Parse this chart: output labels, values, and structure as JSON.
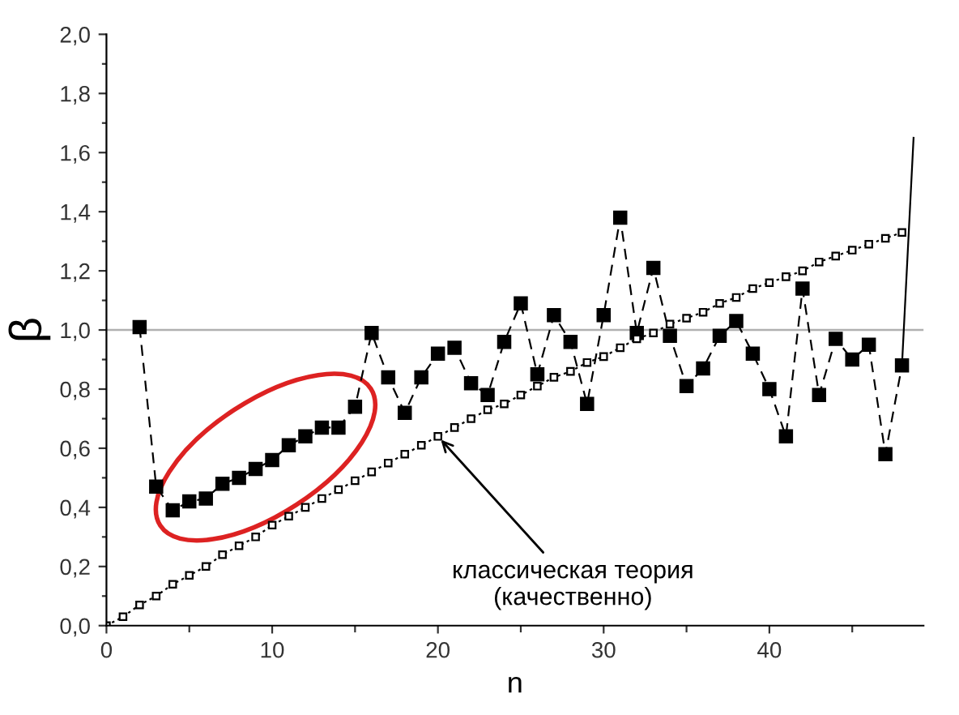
{
  "chart_data": {
    "type": "line",
    "xlabel": "n",
    "ylabel": "β",
    "xlim": [
      0,
      49.3
    ],
    "ylim": [
      0,
      2.0
    ],
    "xticks": [
      0,
      {
        "value": 5,
        "label": null
      },
      10,
      {
        "value": 15,
        "label": null
      },
      20,
      {
        "value": 25,
        "label": null
      },
      30,
      {
        "value": 35,
        "label": null
      },
      40,
      {
        "value": 45,
        "label": null
      }
    ],
    "yticks": [
      {
        "value": 0,
        "label": "0,0"
      },
      {
        "value": 0.1,
        "label": null
      },
      {
        "value": 0.2,
        "label": "0,2"
      },
      {
        "value": 0.3,
        "label": null
      },
      {
        "value": 0.4,
        "label": "0,4"
      },
      {
        "value": 0.5,
        "label": null
      },
      {
        "value": 0.6,
        "label": "0,6"
      },
      {
        "value": 0.7,
        "label": null
      },
      {
        "value": 0.8,
        "label": "0,8"
      },
      {
        "value": 0.9,
        "label": null
      },
      {
        "value": 1.0,
        "label": "1,0"
      },
      {
        "value": 1.1,
        "label": null
      },
      {
        "value": 1.2,
        "label": "1,2"
      },
      {
        "value": 1.3,
        "label": null
      },
      {
        "value": 1.4,
        "label": "1,4"
      },
      {
        "value": 1.5,
        "label": null
      },
      {
        "value": 1.6,
        "label": "1,6"
      },
      {
        "value": 1.7,
        "label": null
      },
      {
        "value": 1.8,
        "label": "1,8"
      },
      {
        "value": 1.9,
        "label": null
      },
      {
        "value": 2.0,
        "label": "2,0"
      }
    ],
    "grid": false,
    "legend": false,
    "ref_lines": [
      {
        "axis": "y",
        "value": 1.0,
        "color": "#b0b0b0",
        "line_style": "solid"
      }
    ],
    "annotations": [
      {
        "text": "классическая теория\n(качественно)",
        "x": 20,
        "y": 0.64
      }
    ],
    "series": [
      {
        "color": "#000000",
        "marker": "square",
        "line_style": "dashed",
        "x": [
          2,
          3,
          4,
          5,
          6,
          7,
          8,
          9,
          10,
          11,
          12,
          13,
          14,
          15,
          16,
          17,
          18,
          19,
          20,
          21,
          22,
          23,
          24,
          25,
          26,
          27,
          28,
          29,
          30,
          31,
          32,
          33,
          34,
          35,
          36,
          37,
          38,
          39,
          40,
          41,
          42,
          43,
          44,
          45,
          46,
          47,
          48
        ],
        "values": [
          1.01,
          0.47,
          0.39,
          0.42,
          0.43,
          0.48,
          0.5,
          0.53,
          0.56,
          0.61,
          0.64,
          0.67,
          0.67,
          0.74,
          0.99,
          0.84,
          0.72,
          0.84,
          0.92,
          0.94,
          0.82,
          0.78,
          0.96,
          1.09,
          0.85,
          1.05,
          0.96,
          0.75,
          1.05,
          1.38,
          0.99,
          1.21,
          0.98,
          0.81,
          0.87,
          0.98,
          1.03,
          0.92,
          0.8,
          0.64,
          1.14,
          0.78,
          0.97,
          0.9,
          0.95,
          0.58,
          0.88
        ]
      },
      {
        "color": "#000000",
        "marker": "none",
        "line_style": "solid",
        "x": [
          48,
          48.7
        ],
        "values": [
          0.88,
          1.65
        ]
      },
      {
        "color": "#000000",
        "marker": "square_open",
        "line_style": "dotted",
        "x": [
          0,
          1,
          2,
          3,
          4,
          5,
          6,
          7,
          8,
          9,
          10,
          11,
          12,
          13,
          14,
          15,
          16,
          17,
          18,
          19,
          20,
          21,
          22,
          23,
          24,
          25,
          26,
          27,
          28,
          29,
          30,
          31,
          32,
          33,
          34,
          35,
          36,
          37,
          38,
          39,
          40,
          41,
          42,
          43,
          44,
          45,
          46,
          47,
          48
        ],
        "values": [
          0,
          0.03,
          0.07,
          0.1,
          0.14,
          0.17,
          0.2,
          0.24,
          0.27,
          0.3,
          0.34,
          0.37,
          0.4,
          0.43,
          0.46,
          0.49,
          0.52,
          0.55,
          0.58,
          0.61,
          0.64,
          0.67,
          0.7,
          0.73,
          0.75,
          0.78,
          0.81,
          0.84,
          0.86,
          0.89,
          0.91,
          0.94,
          0.97,
          0.99,
          1.02,
          1.04,
          1.06,
          1.09,
          1.11,
          1.14,
          1.16,
          1.18,
          1.2,
          1.23,
          1.25,
          1.27,
          1.29,
          1.31,
          1.33
        ]
      }
    ]
  }
}
